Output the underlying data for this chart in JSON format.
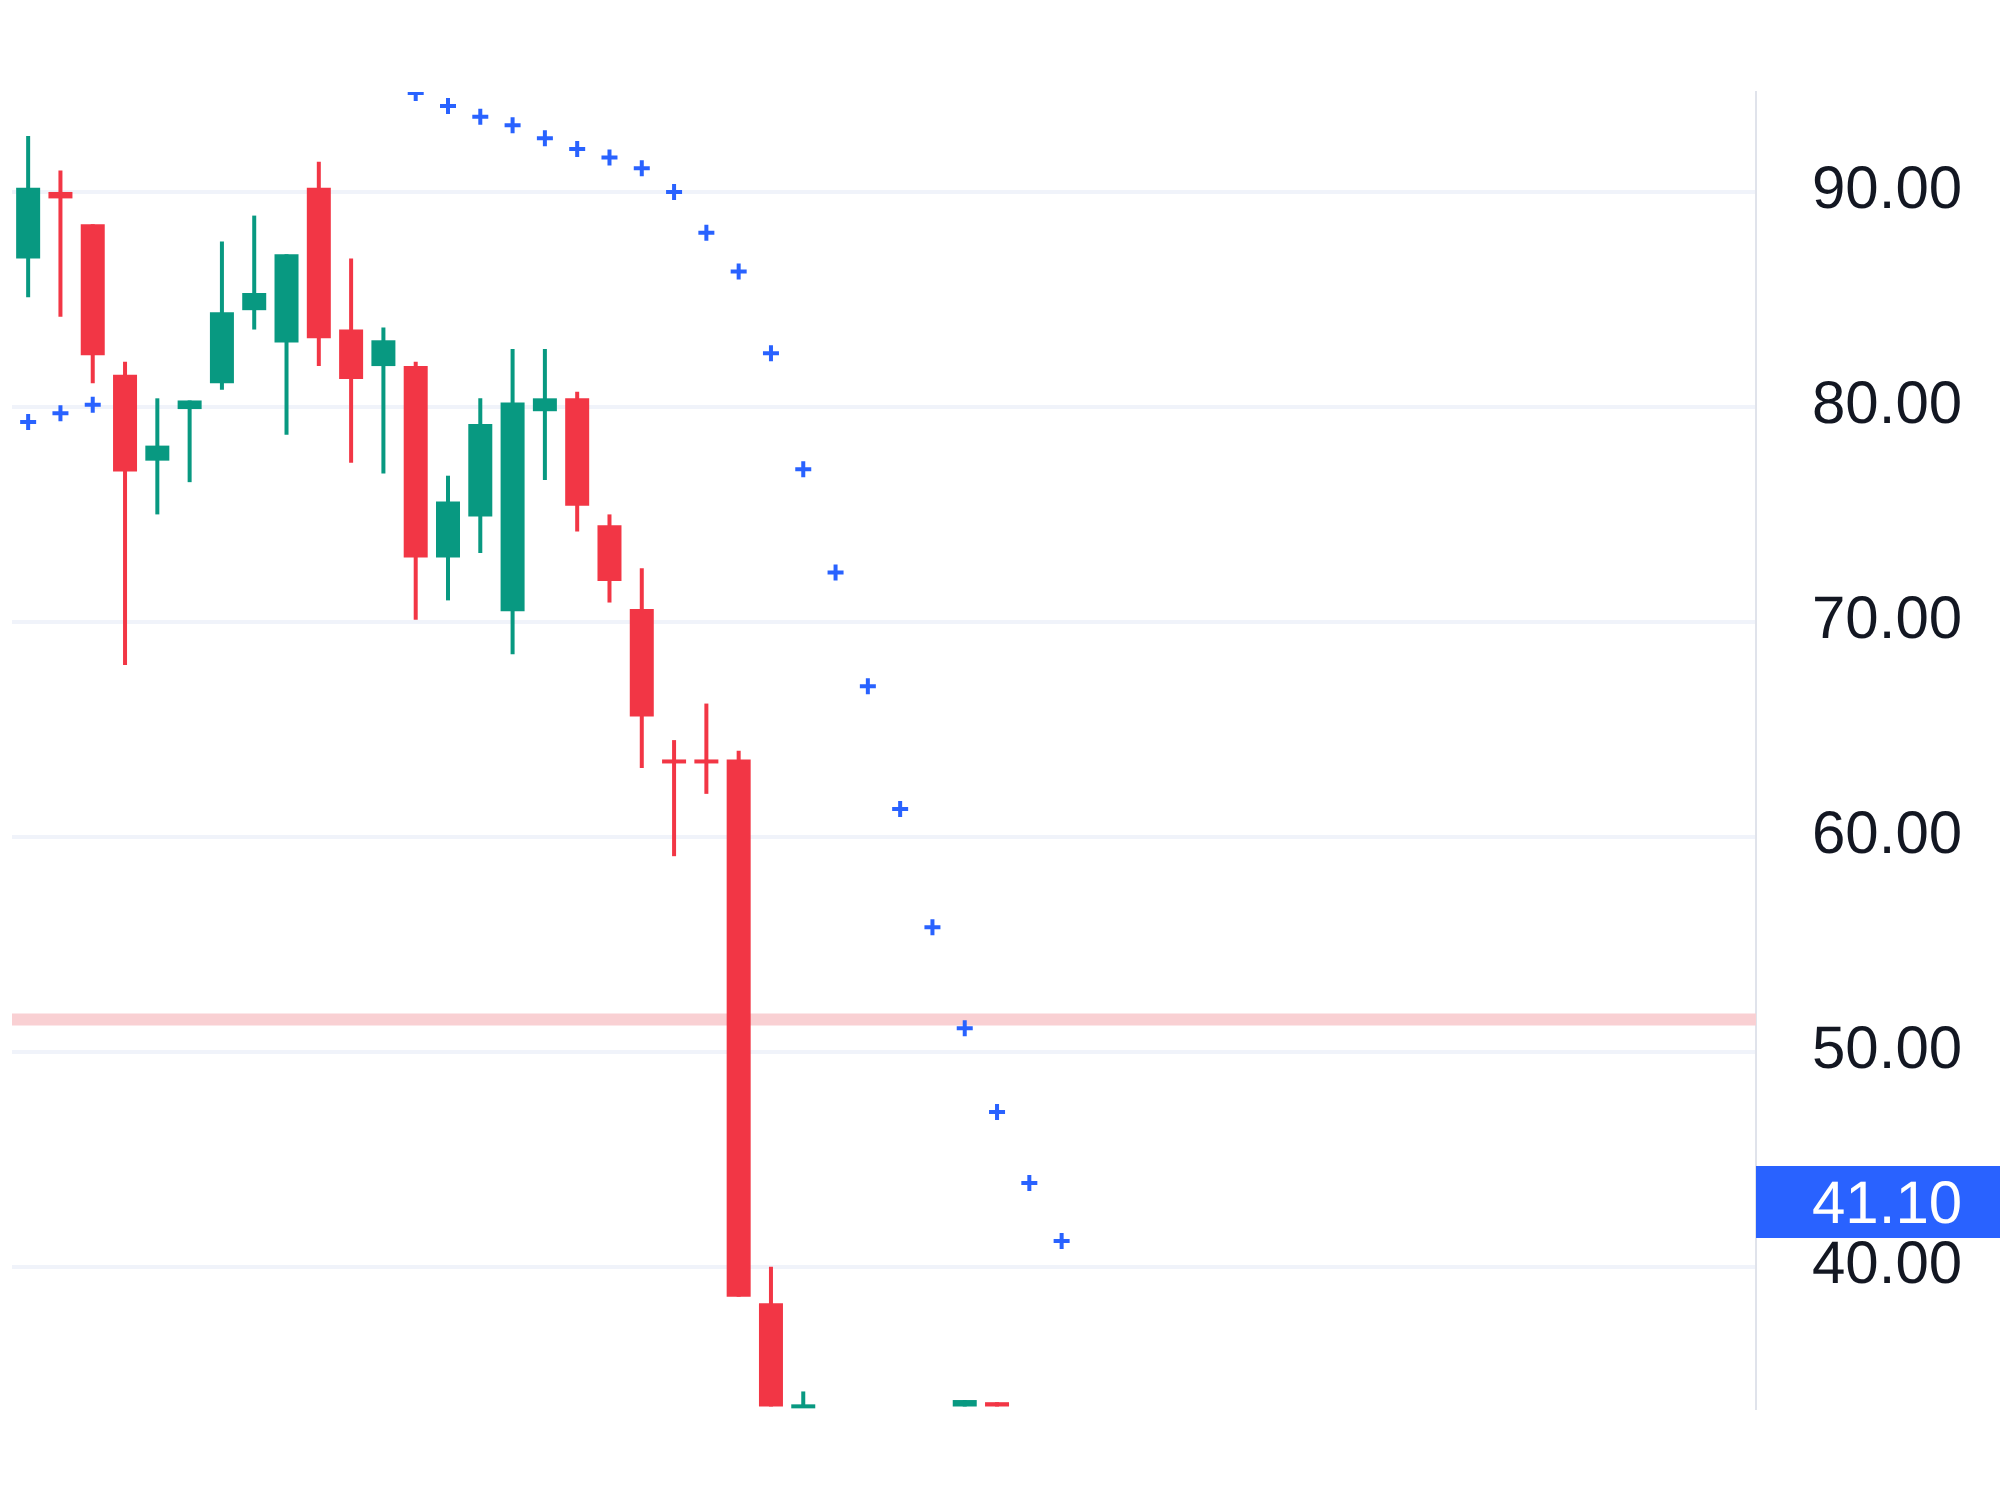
{
  "chart_data": {
    "type": "candlestick",
    "categories": [
      null,
      null,
      null,
      null,
      null,
      null,
      null,
      null,
      null,
      null,
      null,
      null,
      null,
      null,
      null,
      null,
      null,
      null,
      null,
      null,
      null,
      null,
      null,
      null,
      null,
      null,
      null,
      null,
      null,
      null,
      null,
      null,
      null,
      null,
      null,
      null,
      null,
      null,
      null,
      null,
      null,
      null,
      null,
      null,
      null,
      null,
      null,
      null,
      null,
      null,
      null,
      null,
      null,
      null
    ],
    "ohlc": [
      [
        86.9,
        92.6,
        85.1,
        90.2
      ],
      [
        90.0,
        91.0,
        84.2,
        89.7
      ],
      [
        88.5,
        88.5,
        81.1,
        82.4
      ],
      [
        81.5,
        82.1,
        68.0,
        77.0
      ],
      [
        77.5,
        80.4,
        75.0,
        78.2
      ],
      [
        79.9,
        80.3,
        76.5,
        80.3
      ],
      [
        81.1,
        87.7,
        80.8,
        84.4
      ],
      [
        84.5,
        88.9,
        83.6,
        85.3
      ],
      [
        83.0,
        87.1,
        78.7,
        87.1
      ],
      [
        90.2,
        91.4,
        81.9,
        83.2
      ],
      [
        83.6,
        86.9,
        77.4,
        81.3
      ],
      [
        81.9,
        83.7,
        76.9,
        83.1
      ],
      [
        81.9,
        82.1,
        70.1,
        73.0
      ],
      [
        73.0,
        76.8,
        71.0,
        75.6
      ],
      [
        74.9,
        80.4,
        73.2,
        79.2
      ],
      [
        70.5,
        82.7,
        68.5,
        80.2
      ],
      [
        79.8,
        82.7,
        76.6,
        80.4
      ],
      [
        80.4,
        80.7,
        74.2,
        75.4
      ],
      [
        74.5,
        75.0,
        70.9,
        71.9
      ],
      [
        70.6,
        72.5,
        63.2,
        65.6
      ],
      [
        63.6,
        64.5,
        59.1,
        63.5
      ],
      [
        63.6,
        66.2,
        62.0,
        63.5
      ],
      [
        63.6,
        64.0,
        38.6,
        38.6
      ],
      [
        38.3,
        40.0,
        33.5,
        33.5
      ],
      [
        33.5,
        34.2,
        33.5,
        33.6
      ],
      null,
      null,
      null,
      null,
      [
        33.5,
        33.8,
        33.5,
        33.8
      ],
      [
        33.7,
        33.7,
        33.5,
        33.5
      ],
      null,
      null,
      null,
      null,
      null,
      null,
      null,
      null,
      null,
      null,
      null,
      null,
      null,
      null,
      null,
      null,
      null,
      null,
      null,
      null,
      null,
      null,
      null
    ],
    "colors": [
      "#089981",
      "#f23645",
      "#f23645",
      "#f23645",
      "#089981",
      "#089981",
      "#089981",
      "#089981",
      "#089981",
      "#f23645",
      "#f23645",
      "#089981",
      "#f23645",
      "#089981",
      "#089981",
      "#089981",
      "#089981",
      "#f23645",
      "#f23645",
      "#f23645",
      "#f23645",
      "#f23645",
      "#f23645",
      "#f23645",
      "#089981",
      null,
      null,
      null,
      null,
      "#089981",
      "#f23645",
      null,
      null,
      null,
      null,
      null,
      null,
      null,
      null,
      null,
      null,
      null,
      null,
      null,
      null,
      null,
      null,
      null,
      null,
      null,
      null,
      null,
      null,
      null
    ],
    "series": [
      {
        "type": "scatter",
        "color": "#2962ff",
        "marker": "cross",
        "values": [
          79.3,
          79.7,
          80.1,
          null,
          null,
          null,
          null,
          null,
          null,
          null,
          null,
          null,
          94.6,
          94.0,
          93.5,
          93.1,
          92.5,
          92.0,
          91.6,
          91.1,
          90.0,
          88.1,
          86.3,
          82.5,
          77.1,
          72.3,
          67.0,
          61.3,
          55.8,
          51.1,
          47.2,
          43.9,
          41.2,
          null,
          null,
          null,
          null,
          null,
          null,
          null,
          null,
          null,
          null,
          null,
          null,
          null,
          null,
          null,
          null,
          null,
          null,
          null,
          null,
          null
        ]
      }
    ],
    "ylim": [
      33.43,
      94.65
    ],
    "yticks": [
      {
        "value": 40,
        "label": "40.00"
      },
      {
        "value": 50,
        "label": "50.00"
      },
      {
        "value": 60,
        "label": "60.00"
      },
      {
        "value": 70,
        "label": "70.00"
      },
      {
        "value": 80,
        "label": "80.00"
      },
      {
        "value": 90,
        "label": "90.00"
      }
    ],
    "ref_lines": [
      {
        "axis": "y",
        "value": 51.5,
        "color": "#f9d0d3"
      }
    ],
    "annotations": [
      "41.10"
    ],
    "grid": "y",
    "legend": false,
    "tick_labels": "y"
  }
}
